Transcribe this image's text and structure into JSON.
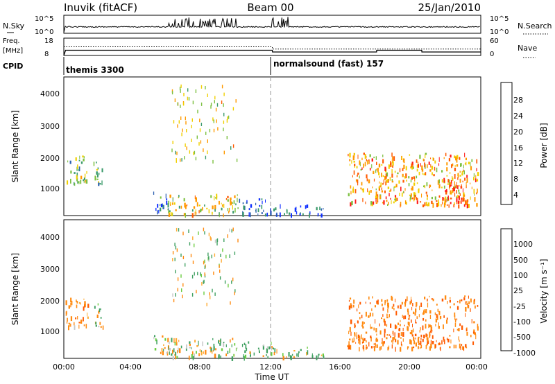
{
  "header": {
    "station": "Inuvik (fitACF)",
    "beam": "Beam 00",
    "date": "25/Jan/2010"
  },
  "noise_panel": {
    "left_label": "N.Sky",
    "left_ticks": [
      "10^5",
      "10^0"
    ],
    "right_label": "N.Search",
    "right_ticks": [
      "10^5",
      "10^0"
    ]
  },
  "freq_panel": {
    "left_label_1": "Freq.",
    "left_label_2": "[MHz]",
    "left_ticks": [
      "18",
      "8"
    ],
    "right_label": "Nave",
    "right_ticks": [
      "60",
      "0"
    ]
  },
  "cpid": {
    "label": "CPID",
    "segments": [
      {
        "name": "themis 3300",
        "start_hour": 0
      },
      {
        "name": "normalsound (fast) 157",
        "start_hour": 12
      }
    ]
  },
  "x_axis": {
    "label": "Time UT",
    "ticks": [
      "00:00",
      "04:00",
      "08:00",
      "12:00",
      "16:00",
      "20:00",
      "00:00"
    ]
  },
  "y_axis": {
    "label": "Slant Range [km]",
    "ticks": [
      "4000",
      "3000",
      "2000",
      "1000"
    ]
  },
  "power_colorbar": {
    "label": "Power [dB]",
    "ticks": [
      "28",
      "24",
      "20",
      "16",
      "12",
      "8",
      "4"
    ],
    "colors": [
      "#ff1a1a",
      "#ff5a00",
      "#ff9a00",
      "#f0d000",
      "#7cc040",
      "#3a9a6a",
      "#2a5fb0",
      "#1030ff"
    ]
  },
  "velocity_colorbar": {
    "label": "Velocity [m s⁻¹]",
    "ticks": [
      "1000",
      "500",
      "100",
      "25",
      "-25",
      "-100",
      "-500",
      "-1000"
    ],
    "colors": [
      "#1f3fc0",
      "#2f7fa0",
      "#3fa060",
      "#6acc40",
      "#c8c8c8",
      "#ffaa30",
      "#ff8a10",
      "#ff5a00",
      "#ff1a1a"
    ]
  },
  "chart_data": [
    {
      "type": "line",
      "title": "N.Sky",
      "x_range_hours": [
        0,
        24
      ],
      "y_scale": "log",
      "y_range": [
        "10^0",
        "10^5"
      ],
      "series": [
        {
          "name": "N.Sky",
          "x_hours": [
            0,
            0.1,
            6,
            10,
            12,
            13,
            24
          ],
          "level": "low (~10^1), spiky between 06:00-10:00 and near 12:00-13:00"
        }
      ]
    },
    {
      "type": "line",
      "title": "Freq. / Nave",
      "x_range_hours": [
        0,
        24
      ],
      "series": [
        {
          "name": "Freq. [MHz]",
          "x_hours": [
            0,
            0.1,
            12,
            12.01,
            18,
            18.01,
            20.6,
            20.61,
            24
          ],
          "y": [
            8,
            11,
            11,
            10,
            10,
            11,
            11,
            10,
            10
          ]
        },
        {
          "name": "Nave",
          "x_hours": [
            0,
            12,
            12.01,
            24
          ],
          "y": [
            30,
            30,
            22,
            22
          ]
        }
      ]
    },
    {
      "type": "heatmap",
      "title": "Power [dB]",
      "x_range_hours": [
        0,
        24
      ],
      "y_range_km": [
        180,
        4500
      ],
      "color_range": [
        4,
        30
      ],
      "regions": [
        {
          "t0": 0.1,
          "t1": 1.4,
          "r0": 1200,
          "r1": 2150,
          "value": 18
        },
        {
          "t0": 1.7,
          "t1": 2.3,
          "r0": 1200,
          "r1": 2000,
          "value": 14
        },
        {
          "t0": 5.1,
          "t1": 6.1,
          "r0": 300,
          "r1": 950,
          "value": 10
        },
        {
          "t0": 6.0,
          "t1": 10.0,
          "r0": 200,
          "r1": 850,
          "value": 20
        },
        {
          "t0": 10.0,
          "t1": 12.0,
          "r0": 200,
          "r1": 700,
          "value": 8
        },
        {
          "t0": 12.0,
          "t1": 15.0,
          "r0": 200,
          "r1": 520,
          "value": 8
        },
        {
          "t0": 16.3,
          "t1": 23.8,
          "r0": 500,
          "r1": 2200,
          "value": 24
        },
        {
          "t0": 21.5,
          "t1": 23.2,
          "r0": 500,
          "r1": 1500,
          "value": 28
        }
      ]
    },
    {
      "type": "heatmap",
      "title": "Velocity [m s-1]",
      "x_range_hours": [
        0,
        24
      ],
      "y_range_km": [
        180,
        4500
      ],
      "color_range": [
        -1000,
        1000
      ],
      "regions": [
        {
          "t0": 0.1,
          "t1": 1.4,
          "r0": 1200,
          "r1": 2150,
          "value": -300
        },
        {
          "t0": 1.7,
          "t1": 2.3,
          "r0": 1200,
          "r1": 2000,
          "value": -60
        },
        {
          "t0": 5.1,
          "t1": 6.1,
          "r0": 300,
          "r1": 950,
          "value": -100
        },
        {
          "t0": 6.0,
          "t1": 10.0,
          "r0": 200,
          "r1": 850,
          "value": 60
        },
        {
          "t0": 10.0,
          "t1": 12.0,
          "r0": 200,
          "r1": 700,
          "value": 150
        },
        {
          "t0": 12.0,
          "t1": 15.0,
          "r0": 200,
          "r1": 520,
          "value": 120
        },
        {
          "t0": 16.3,
          "t1": 23.8,
          "r0": 500,
          "r1": 2200,
          "value": -400
        }
      ]
    }
  ]
}
